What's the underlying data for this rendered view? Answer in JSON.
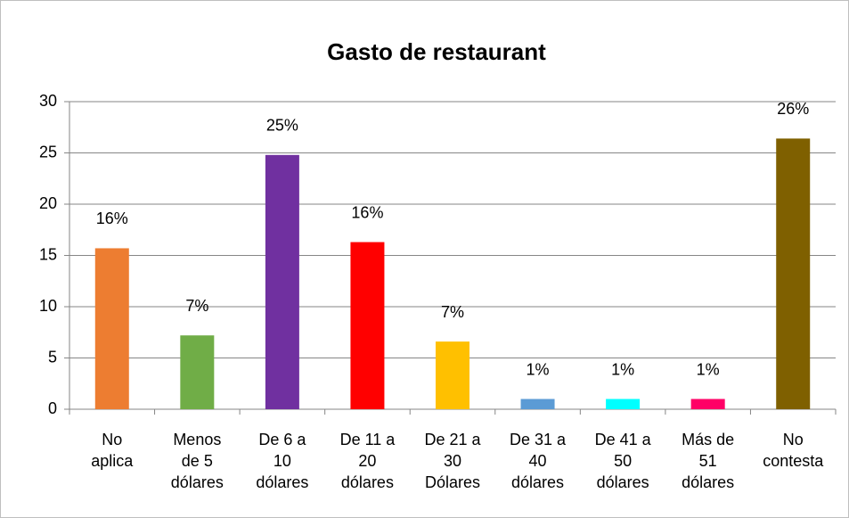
{
  "chart_data": {
    "type": "bar",
    "title": "Gasto de restaurant",
    "categories": [
      "No aplica",
      "Menos de 5 dólares",
      "De 6 a 10 dólares",
      "De 11 a 20 dólares",
      "De 21 a 30 Dólares",
      "De 31 a 40 dólares",
      "De 41 a 50 dólares",
      "Más de 51 dólares",
      "No contesta"
    ],
    "values": [
      15.7,
      7.2,
      24.8,
      16.3,
      6.6,
      1,
      1,
      1,
      26.4
    ],
    "value_labels": [
      "16%",
      "7%",
      "25%",
      "16%",
      "7%",
      "1%",
      "1%",
      "1%",
      "26%"
    ],
    "colors": [
      "#ed7d31",
      "#70ad47",
      "#7030a0",
      "#ff0000",
      "#ffc000",
      "#5b9bd5",
      "#00ffff",
      "#ff0066",
      "#7f6000"
    ],
    "ylim": [
      0,
      30
    ],
    "yticks": [
      0,
      5,
      10,
      15,
      20,
      25,
      30
    ],
    "grid": true
  }
}
